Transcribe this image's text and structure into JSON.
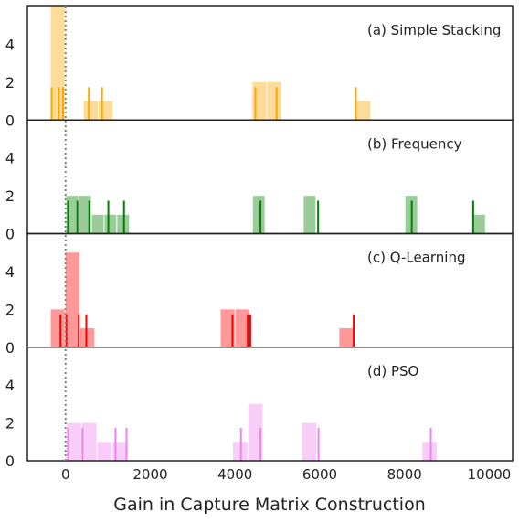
{
  "chart_data": [
    {
      "type": "bar",
      "panel_label": "(a) Simple Stacking",
      "color": "#FFA500",
      "ylim": [
        0,
        6
      ],
      "yticks": [
        "0",
        "2",
        "4"
      ],
      "bins": [
        {
          "x0": -360,
          "x1": -10,
          "count": 6
        },
        {
          "x0": 420,
          "x1": 770,
          "count": 1
        },
        {
          "x0": 770,
          "x1": 1120,
          "count": 1
        },
        {
          "x0": 4400,
          "x1": 4750,
          "count": 2
        },
        {
          "x0": 4750,
          "x1": 5100,
          "count": 2
        },
        {
          "x0": 6850,
          "x1": 7200,
          "count": 1
        }
      ],
      "rug": [
        -330,
        -160,
        -60,
        550,
        860,
        4480,
        4980,
        6850
      ]
    },
    {
      "type": "bar",
      "panel_label": "(b) Frequency",
      "color": "#008000",
      "ylim": [
        0,
        6
      ],
      "yticks": [
        "0",
        "2",
        "4"
      ],
      "bins": [
        {
          "x0": 10,
          "x1": 310,
          "count": 2
        },
        {
          "x0": 310,
          "x1": 610,
          "count": 2
        },
        {
          "x0": 610,
          "x1": 910,
          "count": 1
        },
        {
          "x0": 910,
          "x1": 1210,
          "count": 1
        },
        {
          "x0": 1210,
          "x1": 1510,
          "count": 1
        },
        {
          "x0": 4410,
          "x1": 4710,
          "count": 2
        },
        {
          "x0": 5610,
          "x1": 5910,
          "count": 2
        },
        {
          "x0": 8010,
          "x1": 8310,
          "count": 2
        },
        {
          "x0": 9610,
          "x1": 9910,
          "count": 1
        }
      ],
      "rug": [
        60,
        280,
        560,
        1010,
        1380,
        4600,
        5960,
        8170,
        9620
      ]
    },
    {
      "type": "bar",
      "panel_label": "(c) Q-Learning",
      "color": "#FF0000",
      "ylim": [
        0,
        6
      ],
      "yticks": [
        "0",
        "2",
        "4"
      ],
      "bins": [
        {
          "x0": -360,
          "x1": -10,
          "count": 2
        },
        {
          "x0": -10,
          "x1": 340,
          "count": 5
        },
        {
          "x0": 340,
          "x1": 690,
          "count": 1
        },
        {
          "x0": 3650,
          "x1": 4000,
          "count": 2
        },
        {
          "x0": 4000,
          "x1": 4350,
          "count": 2
        },
        {
          "x0": 6450,
          "x1": 6800,
          "count": 1
        }
      ],
      "rug": [
        -120,
        20,
        310,
        490,
        3940,
        4300,
        4360,
        6800
      ]
    },
    {
      "type": "bar",
      "panel_label": "(d) PSO",
      "color": "#EE82EE",
      "ylim": [
        0,
        6
      ],
      "yticks": [
        "0",
        "2",
        "4"
      ],
      "bins": [
        {
          "x0": 20,
          "x1": 380,
          "count": 2
        },
        {
          "x0": 380,
          "x1": 740,
          "count": 2
        },
        {
          "x0": 740,
          "x1": 1100,
          "count": 1
        },
        {
          "x0": 1100,
          "x1": 1460,
          "count": 1
        },
        {
          "x0": 3940,
          "x1": 4300,
          "count": 1
        },
        {
          "x0": 4300,
          "x1": 4660,
          "count": 3
        },
        {
          "x0": 5570,
          "x1": 5930,
          "count": 2
        },
        {
          "x0": 8410,
          "x1": 8770,
          "count": 1
        }
      ],
      "rug": [
        60,
        400,
        1180,
        1440,
        4140,
        4600,
        5970,
        8620
      ]
    }
  ],
  "shared_axis": {
    "xlabel": "Gain in Capture Matrix Construction",
    "xlim": [
      -900,
      10550
    ],
    "xticks": [
      0,
      2000,
      4000,
      6000,
      8000,
      10000
    ],
    "xtick_labels": [
      "0",
      "2000",
      "4000",
      "6000",
      "8000",
      "10000"
    ],
    "reference_line": {
      "x": 0,
      "style": "dotted",
      "color": "#808080"
    },
    "grid": false
  }
}
